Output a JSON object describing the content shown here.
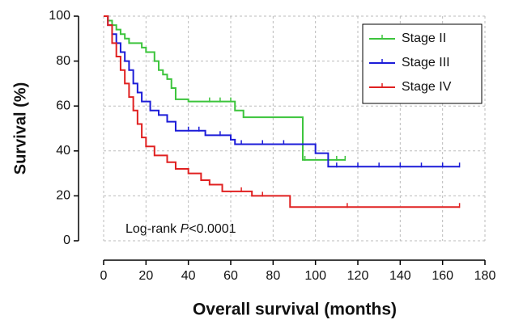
{
  "chart_data": {
    "type": "km",
    "x_label": "Overall survival (months)",
    "y_label": "Survival (%)",
    "annotation": {
      "prefix": "Log-rank ",
      "italic": "P",
      "suffix": "<0.0001"
    },
    "xlim": [
      0,
      180
    ],
    "xticks": [
      0,
      20,
      40,
      60,
      80,
      100,
      120,
      140,
      160,
      180
    ],
    "ylim": [
      0,
      100
    ],
    "yticks": [
      0,
      20,
      40,
      60,
      80,
      100
    ],
    "grid": true,
    "legend": "top-right",
    "series": [
      {
        "name": "Stage II",
        "color": "#3cc43c",
        "x": [
          0,
          2,
          4,
          6,
          8,
          10,
          12,
          18,
          20,
          24,
          26,
          28,
          30,
          32,
          34,
          40,
          62,
          66,
          94,
          114
        ],
        "values": [
          100,
          98,
          96,
          94,
          92,
          90,
          88,
          86,
          84,
          80,
          76,
          74,
          72,
          68,
          63,
          62,
          58,
          55,
          36,
          36
        ],
        "censored": [
          50,
          55,
          60,
          95,
          110,
          114
        ]
      },
      {
        "name": "Stage III",
        "color": "#1c1cd8",
        "x": [
          0,
          2,
          4,
          6,
          8,
          10,
          12,
          14,
          16,
          18,
          22,
          26,
          30,
          34,
          48,
          60,
          62,
          100,
          106,
          168
        ],
        "values": [
          100,
          96,
          92,
          88,
          84,
          80,
          76,
          70,
          66,
          62,
          58,
          56,
          53,
          49,
          47,
          45,
          43,
          39,
          33,
          33
        ],
        "censored": [
          40,
          45,
          55,
          65,
          75,
          85,
          110,
          120,
          130,
          140,
          150,
          160,
          168
        ]
      },
      {
        "name": "Stage IV",
        "color": "#e02020",
        "x": [
          0,
          2,
          4,
          6,
          8,
          10,
          12,
          14,
          16,
          18,
          20,
          24,
          30,
          34,
          40,
          46,
          50,
          56,
          70,
          88,
          168
        ],
        "values": [
          100,
          96,
          88,
          82,
          76,
          70,
          64,
          58,
          52,
          46,
          42,
          38,
          35,
          32,
          30,
          27,
          25,
          22,
          20,
          15,
          15
        ],
        "censored": [
          65,
          75,
          115,
          168
        ]
      }
    ]
  }
}
